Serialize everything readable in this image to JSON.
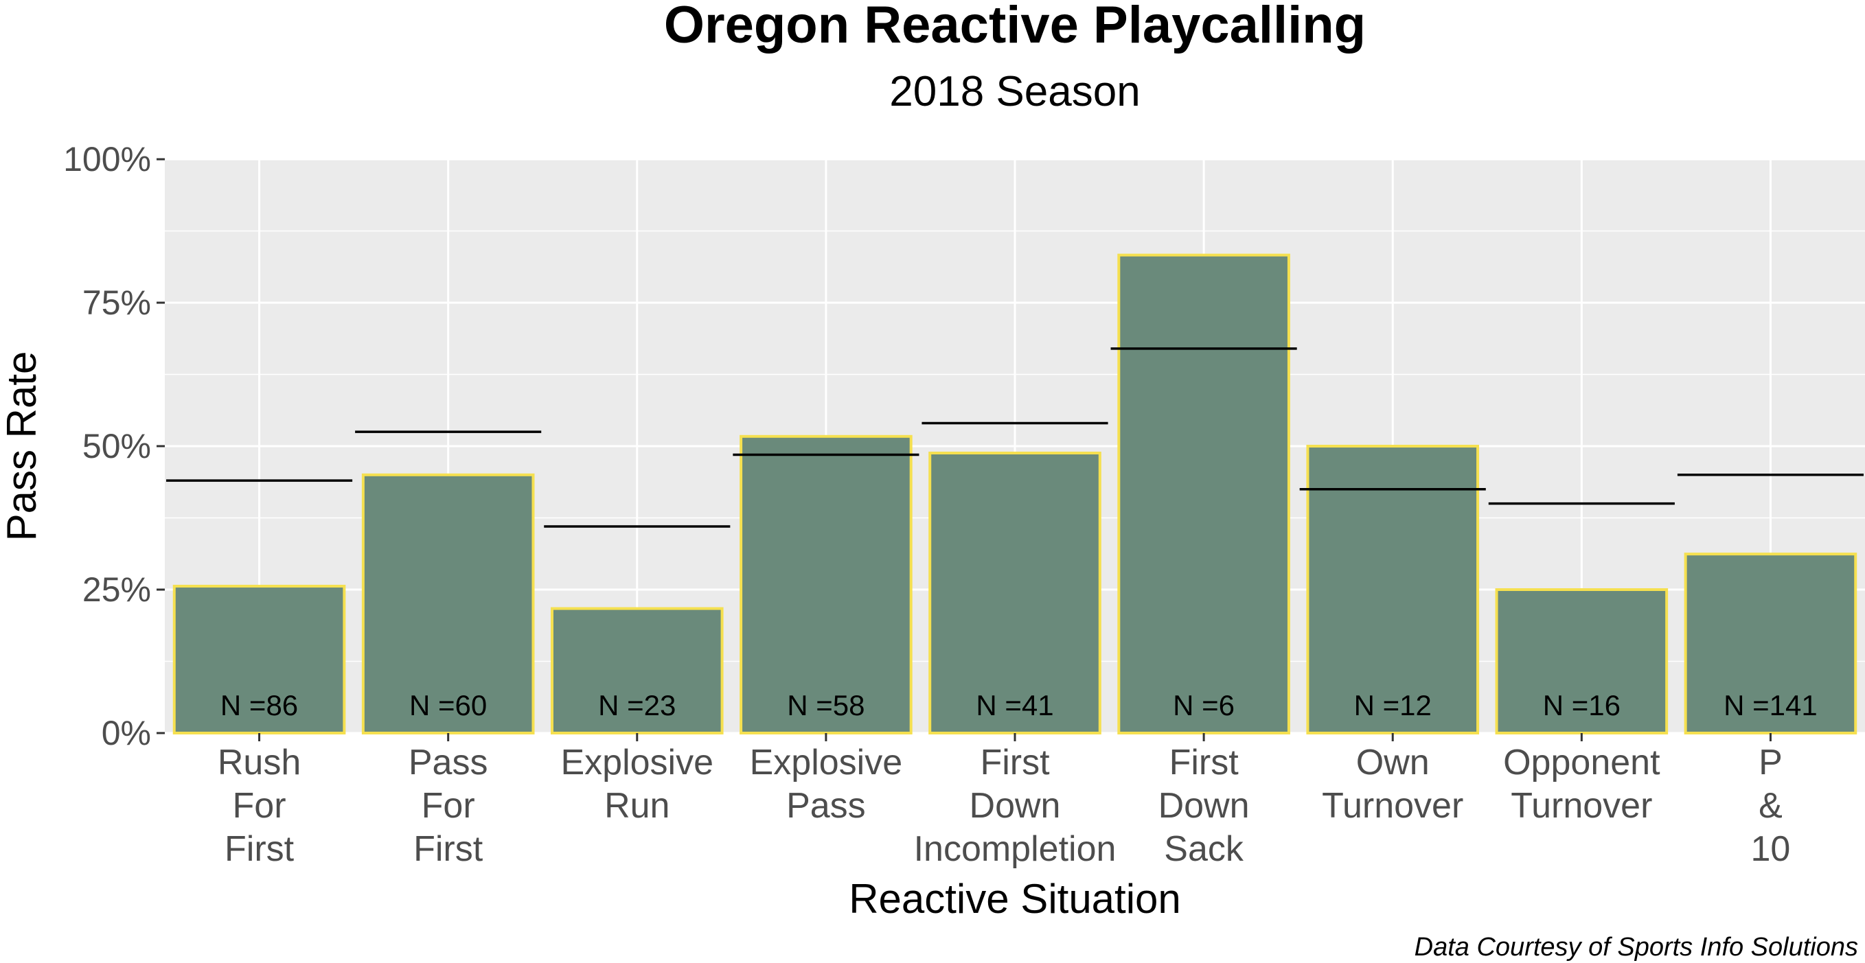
{
  "chart_data": {
    "type": "bar",
    "title": "Oregon Reactive Playcalling",
    "subtitle": "2018 Season",
    "xlabel": "Reactive Situation",
    "ylabel": "Pass Rate",
    "caption": "Data Courtesy of Sports Info Solutions",
    "ylim": [
      0,
      1
    ],
    "y_ticks": [
      0,
      0.25,
      0.5,
      0.75,
      1.0
    ],
    "y_tick_labels": [
      "0%",
      "25%",
      "50%",
      "75%",
      "100%"
    ],
    "grid": true,
    "colors": {
      "bar_fill": "#6a8a7b",
      "bar_outline": "#f5e050",
      "panel": "#ebebeb",
      "grid": "#ffffff",
      "reference_line": "#000000"
    },
    "categories": [
      [
        "Rush",
        "For",
        "First"
      ],
      [
        "Pass",
        "For",
        "First"
      ],
      [
        "Explosive",
        "Run"
      ],
      [
        "Explosive",
        "Pass"
      ],
      [
        "First",
        "Down",
        "Incompletion"
      ],
      [
        "First",
        "Down",
        "Sack"
      ],
      [
        "Own",
        "Turnover"
      ],
      [
        "Opponent",
        "Turnover"
      ],
      [
        "P",
        "&",
        "10"
      ]
    ],
    "values": [
      0.256,
      0.45,
      0.217,
      0.517,
      0.488,
      0.833,
      0.5,
      0.25,
      0.312
    ],
    "reference_values": [
      0.44,
      0.525,
      0.36,
      0.485,
      0.54,
      0.67,
      0.425,
      0.4,
      0.45
    ],
    "n_labels": [
      "N =86",
      "N =60",
      "N =23",
      "N =58",
      "N =41",
      "N =6",
      "N =12",
      "N =16",
      "N =141"
    ]
  }
}
